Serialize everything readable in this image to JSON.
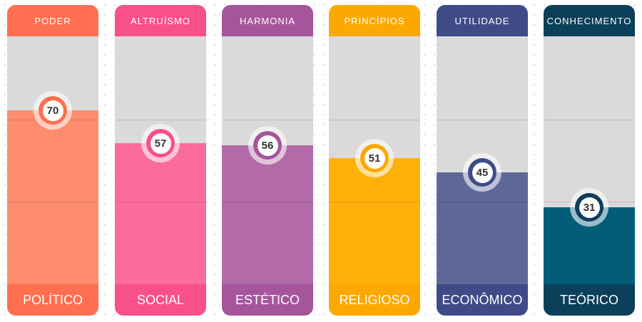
{
  "chart_data": {
    "type": "bar",
    "ylim": [
      0,
      100
    ],
    "grid": true,
    "bars": [
      {
        "header": "PODER",
        "label": "POLÍTICO",
        "value": 70,
        "color": "#ff8c6e",
        "dark": "#ff6f50"
      },
      {
        "header": "ALTRUÍSMO",
        "label": "SOCIAL",
        "value": 57,
        "color": "#fb6c9b",
        "dark": "#f8508a"
      },
      {
        "header": "HARMONIA",
        "label": "ESTÉTICO",
        "value": 56,
        "color": "#b26ba8",
        "dark": "#a6559d"
      },
      {
        "header": "PRINCÍPIOS",
        "label": "RELIGIOSO",
        "value": 51,
        "color": "#ffb10a",
        "dark": "#fca800"
      },
      {
        "header": "UTILIDADE",
        "label": "ECONÔMICO",
        "value": 45,
        "color": "#5e6898",
        "dark": "#3f4b86"
      },
      {
        "header": "CONHECIMENTO",
        "label": "TEÓRICO",
        "value": 31,
        "color": "#035d78",
        "dark": "#0b3f5a"
      }
    ]
  }
}
